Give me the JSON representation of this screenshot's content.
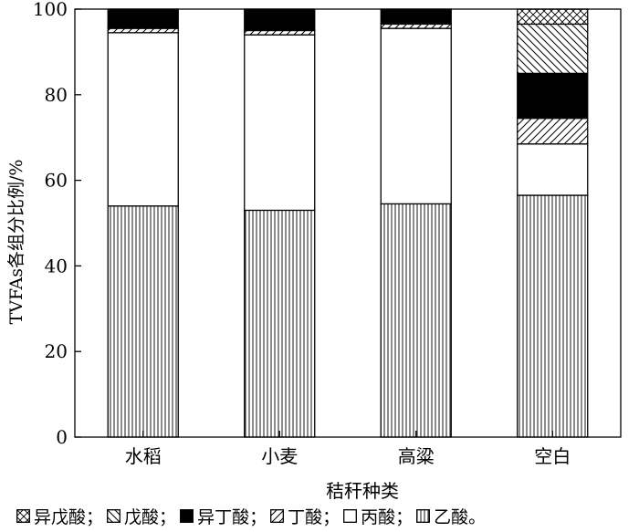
{
  "chart_data": {
    "type": "bar",
    "stacked": true,
    "ylabel": "TVFAs各组分比例/%",
    "xlabel": "秸秆种类",
    "ylim": [
      0,
      100
    ],
    "yticks": [
      0,
      20,
      40,
      60,
      80,
      100
    ],
    "categories": [
      "水稻",
      "小麦",
      "高粱",
      "空白"
    ],
    "series": [
      {
        "name": "乙酸",
        "pattern": "vertical-lines",
        "values": [
          54.0,
          53.0,
          54.5,
          56.5
        ]
      },
      {
        "name": "丙酸",
        "pattern": "white",
        "values": [
          40.5,
          41.0,
          41.0,
          12.0
        ]
      },
      {
        "name": "丁酸",
        "pattern": "diagonal-forward",
        "values": [
          1.0,
          1.0,
          1.0,
          6.0
        ]
      },
      {
        "name": "异丁酸",
        "pattern": "solid-black",
        "values": [
          4.5,
          5.0,
          3.5,
          10.5
        ]
      },
      {
        "name": "戊酸",
        "pattern": "diagonal-backward",
        "values": [
          0,
          0,
          0,
          11.5
        ]
      },
      {
        "name": "异戊酸",
        "pattern": "crosshatch",
        "values": [
          0,
          0,
          0,
          3.5
        ]
      }
    ],
    "legend": {
      "position": "bottom",
      "order": [
        "异戊酸",
        "戊酸",
        "异丁酸",
        "丁酸",
        "丙酸",
        "乙酸"
      ],
      "separator": "；",
      "end": "。"
    },
    "grid": false
  }
}
